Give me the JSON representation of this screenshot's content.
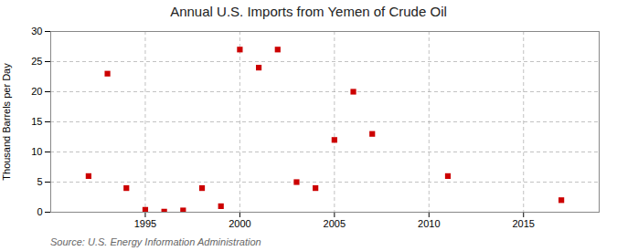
{
  "chart_data": {
    "type": "scatter",
    "title": "Annual U.S. Imports from Yemen of Crude Oil",
    "ylabel": "Thousand Barrels per Day",
    "source": "Source: U.S. Energy Information Administration",
    "x": [
      1992,
      1993,
      1994,
      1995,
      1996,
      1997,
      1998,
      1999,
      2000,
      2001,
      2002,
      2003,
      2004,
      2005,
      2006,
      2007,
      2011,
      2017
    ],
    "values": [
      6,
      23,
      4,
      0.4,
      0.1,
      0.3,
      4,
      1,
      27,
      24,
      27,
      5,
      4,
      12,
      20,
      13,
      6,
      2
    ],
    "color": "#cc0000",
    "marker": "square",
    "xlim": [
      1990,
      2019
    ],
    "xticks": [
      1995,
      2000,
      2005,
      2010,
      2015
    ],
    "ylim": [
      0,
      30
    ],
    "yticks": [
      0,
      5,
      10,
      15,
      20,
      25,
      30
    ],
    "grid": true
  }
}
